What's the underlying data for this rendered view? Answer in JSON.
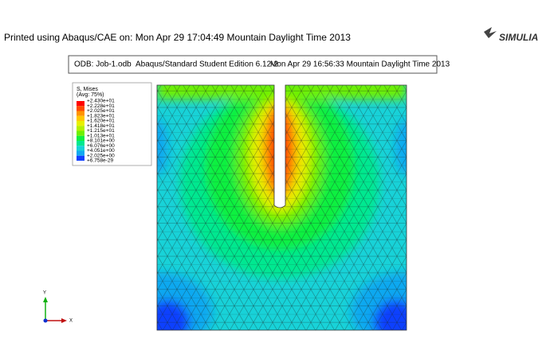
{
  "header": {
    "printed": "Printed using Abaqus/CAE on: Mon Apr 29 17:04:49 Mountain Daylight Time 2013",
    "logo": "SIMULIA"
  },
  "info": {
    "odb": "ODB: Job-1.odb",
    "edition": "Abaqus/Standard Student Edition 6.12-2",
    "date": "Mon Apr 29 16:56:33 Mountain Daylight Time 2013"
  },
  "legend": {
    "title": "S, Mises",
    "subtitle": "(Avg: 75%)",
    "labels": [
      "+2.430e+01",
      "+2.228e+01",
      "+2.025e+01",
      "+1.823e+01",
      "+1.620e+01",
      "+1.418e+01",
      "+1.215e+01",
      "+1.013e+01",
      "+8.101e+00",
      "+6.076e+00",
      "+4.051e+00",
      "+2.025e+00",
      "+6.758e-29"
    ],
    "colors": [
      "#ff0000",
      "#ff4a00",
      "#ff9400",
      "#ffc800",
      "#e8f000",
      "#b4f000",
      "#6ef000",
      "#10f040",
      "#00e890",
      "#18d2d8",
      "#10a8f0",
      "#1040ff"
    ]
  },
  "triad": {
    "y": "Y",
    "x": "X"
  }
}
